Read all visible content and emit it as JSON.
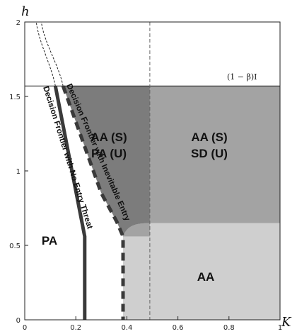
{
  "axes": {
    "x_variable": "K",
    "y_variable": "h",
    "x_ticks": [
      "0",
      "0.2",
      "0.4",
      "0.6",
      "0.8",
      "1"
    ],
    "y_ticks": [
      "0",
      "0.5",
      "1",
      "1.5",
      "2"
    ],
    "xlim": [
      0,
      1
    ],
    "ylim": [
      0,
      2
    ]
  },
  "reference_line": {
    "label": "(1 − β)I",
    "h": 1.57
  },
  "vertical_reference": {
    "K": 0.49
  },
  "regions": {
    "pa": {
      "label": "PA"
    },
    "aa_s_pa_u": {
      "line1": "AA (S)",
      "line2": "PA (U)"
    },
    "aa_s_sd_u": {
      "line1": "AA (S)",
      "line2": "SD (U)"
    },
    "aa": {
      "label": "AA"
    }
  },
  "frontiers": {
    "no_entry_threat": {
      "label": "Decision Frontier with No Entry Threat",
      "points": [
        [
          0.12,
          1.57
        ],
        [
          0.235,
          0.56
        ],
        [
          0.235,
          0.0
        ]
      ]
    },
    "inevitable_entry": {
      "label": "Decision Frontier with Inevitable Entry",
      "points": [
        [
          0.15,
          1.57
        ],
        [
          0.3,
          0.85
        ],
        [
          0.36,
          0.66
        ],
        [
          0.385,
          0.56
        ],
        [
          0.385,
          0.0
        ]
      ]
    }
  },
  "colors": {
    "dark_region": "#7c7c7c",
    "mid_region": "#a3a3a3",
    "light_region": "#cfcfcf",
    "frontier": "#3a3a3a"
  }
}
